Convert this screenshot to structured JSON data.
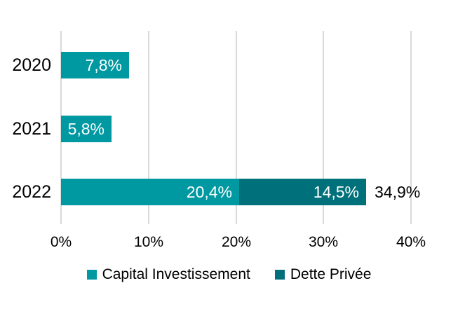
{
  "chart_data": {
    "type": "bar",
    "orientation": "horizontal",
    "stacked": true,
    "title": "",
    "categories": [
      "2020",
      "2021",
      "2022"
    ],
    "series": [
      {
        "name": "Capital Investissement",
        "color": "#0098A1",
        "values": [
          7.8,
          5.8,
          20.4
        ],
        "value_labels": [
          "7,8%",
          "5,8%",
          "20,4%"
        ]
      },
      {
        "name": "Dette Privée",
        "color": "#00707B",
        "values": [
          0,
          0,
          14.5
        ],
        "value_labels": [
          "",
          "",
          "14,5%"
        ]
      }
    ],
    "total_labels": [
      "",
      "",
      "34,9%"
    ],
    "x_ticks": [
      {
        "value": 0,
        "label": "0%"
      },
      {
        "value": 10,
        "label": "10%"
      },
      {
        "value": 20,
        "label": "20%"
      },
      {
        "value": 30,
        "label": "30%"
      },
      {
        "value": 40,
        "label": "40%"
      }
    ],
    "xlim": [
      0,
      40
    ],
    "grid": "vertical-gridlines-only",
    "legend_position": "bottom",
    "colors": {
      "gridline": "#D9D9D9",
      "category_text": "#000000",
      "tick_text": "#000000",
      "bar_label_text": "#FFFFFF",
      "total_label_text": "#000000",
      "background": "#FFFFFF"
    }
  }
}
